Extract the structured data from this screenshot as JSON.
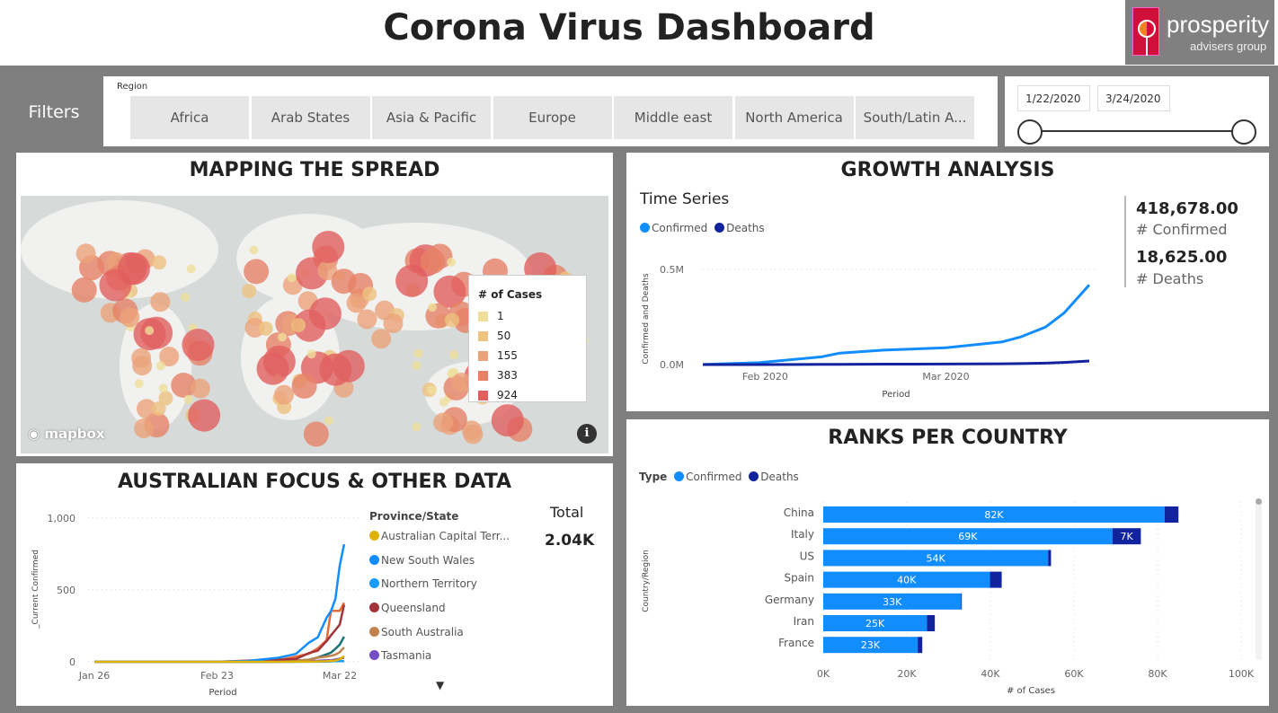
{
  "header": {
    "title": "Corona Virus Dashboard",
    "logo_text_main": "prosperity",
    "logo_text_sub": "advisers group"
  },
  "filters": {
    "label": "Filters",
    "region_label": "Region",
    "regions": [
      "Africa",
      "Arab States",
      "Asia & Pacific",
      "Europe",
      "Middle east",
      "North America",
      "South/Latin A..."
    ],
    "date_start": "1/22/2020",
    "date_end": "3/24/2020"
  },
  "map_panel": {
    "title": "MAPPING THE SPREAD",
    "legend_title": "# of Cases",
    "legend": [
      {
        "label": "1",
        "color": "#efdf9a"
      },
      {
        "label": "50",
        "color": "#eec27f"
      },
      {
        "label": "155",
        "color": "#eba27a"
      },
      {
        "label": "383",
        "color": "#e68266"
      },
      {
        "label": "924",
        "color": "#e15f5f"
      }
    ],
    "attribution": "mapbox",
    "info_icon": "info-icon"
  },
  "growth_panel": {
    "title": "GROWTH ANALYSIS",
    "chart_title": "Time Series",
    "kpi_confirmed_value": "418,678.00",
    "kpi_confirmed_label": "# Confirmed",
    "kpi_deaths_value": "18,625.00",
    "kpi_deaths_label": "# Deaths"
  },
  "aus_panel": {
    "title": "AUSTRALIAN FOCUS & OTHER DATA",
    "legend_title": "Province/State",
    "total_label": "Total",
    "total_value": "2.04K"
  },
  "ranks_panel": {
    "title": "RANKS PER COUNTRY",
    "legend_title": "Type"
  },
  "colors": {
    "confirmed": "#118dff",
    "deaths": "#12239e",
    "panel_border": "#7f7f7f"
  },
  "chart_data": [
    {
      "type": "line",
      "id": "growth",
      "xlabel": "Period",
      "ylabel": "Confirmed and Deaths",
      "x_ticks": [
        "Feb 2020",
        "Mar 2020"
      ],
      "y_ticks": [
        "0.0M",
        "0.5M"
      ],
      "ylim": [
        0,
        500000
      ],
      "x": [
        "2020-01-22",
        "2020-01-31",
        "2020-02-10",
        "2020-02-13",
        "2020-02-20",
        "2020-03-01",
        "2020-03-10",
        "2020-03-13",
        "2020-03-17",
        "2020-03-20",
        "2020-03-24"
      ],
      "series": [
        {
          "name": "Confirmed",
          "color": "#118dff",
          "values": [
            555,
            9900,
            40500,
            60300,
            76200,
            88400,
            119000,
            145200,
            197200,
            272200,
            418678
          ]
        },
        {
          "name": "Deaths",
          "color": "#12239e",
          "values": [
            17,
            213,
            1010,
            1370,
            2250,
            3000,
            4260,
            5400,
            7900,
            11300,
            18625
          ]
        }
      ],
      "grid": "horizontal dotted",
      "legend": "top-left"
    },
    {
      "type": "line",
      "id": "australia",
      "xlabel": "Period",
      "ylabel": "_Current Confirmed",
      "x_ticks": [
        "Jan 26",
        "Feb 23",
        "Mar 22"
      ],
      "y_ticks": [
        "0",
        "500",
        "1,000"
      ],
      "ylim": [
        0,
        1000
      ],
      "x": [
        "2020-01-26",
        "2020-02-23",
        "2020-03-01",
        "2020-03-08",
        "2020-03-12",
        "2020-03-15",
        "2020-03-17",
        "2020-03-19",
        "2020-03-20",
        "2020-03-21",
        "2020-03-22",
        "2020-03-23"
      ],
      "series": [
        {
          "name": "Australian Capital Terr...",
          "color": "#e0b300",
          "values": [
            0,
            0,
            0,
            0,
            1,
            1,
            2,
            4,
            6,
            9,
            19,
            39
          ]
        },
        {
          "name": "New South Wales",
          "color": "#118dff",
          "values": [
            0,
            0,
            6,
            28,
            55,
            134,
            171,
            307,
            353,
            436,
            669,
            818
          ]
        },
        {
          "name": "Northern Territory",
          "color": "#1a9bff",
          "values": [
            0,
            0,
            0,
            0,
            0,
            1,
            1,
            1,
            3,
            5,
            5,
            5
          ]
        },
        {
          "name": "Queensland",
          "color": "#a4343a",
          "values": [
            0,
            0,
            5,
            15,
            20,
            61,
            78,
            144,
            184,
            221,
            259,
            397
          ]
        },
        {
          "name": "South Australia",
          "color": "#c0834d",
          "values": [
            0,
            0,
            0,
            2,
            7,
            16,
            29,
            37,
            42,
            50,
            67,
            100
          ]
        },
        {
          "name": "Tasmania",
          "color": "#744ec2",
          "values": [
            0,
            0,
            0,
            1,
            2,
            6,
            7,
            10,
            11,
            16,
            22,
            28
          ]
        },
        {
          "color": "#e66c37",
          "values": [
            0,
            0,
            9,
            11,
            36,
            57,
            94,
            150,
            355,
            355,
            355,
            411
          ]
        },
        {
          "color": "#197278",
          "values": [
            0,
            0,
            0,
            0,
            9,
            14,
            31,
            52,
            64,
            90,
            120,
            175
          ]
        }
      ],
      "legend": "right"
    },
    {
      "type": "bar",
      "id": "ranks",
      "orientation": "horizontal",
      "stacked": true,
      "xlabel": "# of Cases",
      "ylabel": "Country/Region",
      "categories": [
        "China",
        "Italy",
        "US",
        "Spain",
        "Germany",
        "Iran",
        "France"
      ],
      "x_ticks": [
        "0K",
        "20K",
        "40K",
        "60K",
        "80K",
        "100K"
      ],
      "xlim": [
        0,
        100000
      ],
      "series": [
        {
          "name": "Confirmed",
          "color": "#118dff",
          "values": [
            81700,
            69200,
            53800,
            39900,
            33000,
            24800,
            22600
          ],
          "labels": [
            "82K",
            "69K",
            "54K",
            "40K",
            "33K",
            "25K",
            "23K"
          ]
        },
        {
          "name": "Deaths",
          "color": "#12239e",
          "values": [
            3300,
            6800,
            700,
            2800,
            160,
            1900,
            1100
          ],
          "labels": [
            "",
            "7K",
            "",
            "",
            "",
            "",
            ""
          ]
        }
      ],
      "legend": "top-left"
    }
  ]
}
